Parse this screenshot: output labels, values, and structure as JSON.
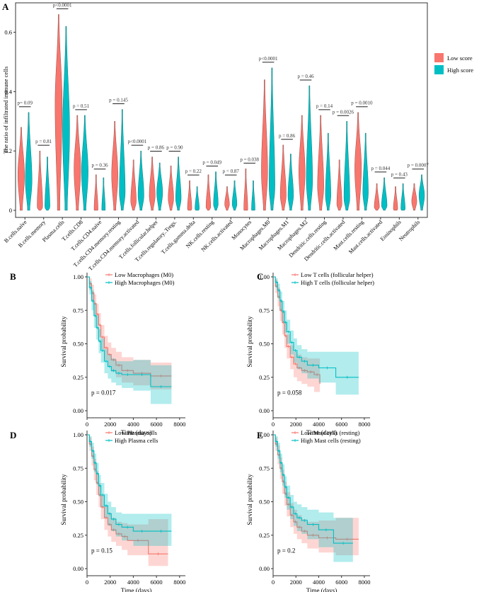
{
  "colors": {
    "low": "#F8766D",
    "high": "#00BFC4",
    "low_fill": "#F8766D",
    "high_fill": "#00BFC4",
    "axis": "#333333",
    "bracket": "#222222"
  },
  "panel_labels": [
    "A",
    "B",
    "C",
    "D",
    "E"
  ],
  "chart_data": [
    {
      "panel": "A",
      "type": "violin",
      "title": "",
      "xlabel": "",
      "ylabel": "The ratio of infiltrated immune cells",
      "ylim": [
        0,
        0.68
      ],
      "yticks": [
        0,
        0.2,
        0.4,
        0.6
      ],
      "ytick_labels": [
        "0",
        "0.2",
        "0.4",
        "0.6"
      ],
      "legend_position": "right",
      "legend": [
        "Low score",
        "High score"
      ],
      "categories": [
        "B.cells.naive",
        "B.cells.memory",
        "Plasma.cells",
        "T.cells.CD8",
        "T.cells.CD4.naive",
        "T.cells.CD4.memory.resting",
        "T.cells.CD4.memory.activated",
        "T.cells.follicular.helper",
        "T.cells.regulatory..Tregs.",
        "T.cells.gamma.delta",
        "NK.cells.resting",
        "NK.cells.activated",
        "Monocytes",
        "Macrophages.M0",
        "Macrophages.M1",
        "Macrophages.M2",
        "Dendritic.cells.resting",
        "Dendritic.cells.activated",
        "Mast.cells.resting",
        "Mast.cells.activated",
        "Eosinophils",
        "Neutrophils"
      ],
      "pvalues": [
        "p= 0.09",
        "p = 0.81",
        "p<0.0001",
        "p = 0.51",
        "p = 0.36",
        "p = 0.145",
        "p<0.0001",
        "p = 0.86",
        "p = 0.90",
        "p = 0.22",
        "p = 0.049",
        "p = 0.87",
        "p = 0.038",
        "p<0.0001",
        "p = 0.86",
        "p = 0.46",
        "p = 0.14",
        "p = 0.0026",
        "p = 0.0010",
        "p = 0.044",
        "p = 0.43",
        "p = 0.0007"
      ],
      "series": [
        {
          "name": "Low score",
          "max": [
            0.28,
            0.2,
            0.66,
            0.32,
            0.12,
            0.3,
            0.17,
            0.18,
            0.15,
            0.1,
            0.12,
            0.08,
            0.14,
            0.44,
            0.22,
            0.32,
            0.32,
            0.17,
            0.33,
            0.09,
            0.08,
            0.09
          ],
          "center": [
            0.12,
            0.01,
            0.36,
            0.14,
            0.002,
            0.12,
            0.03,
            0.05,
            0.04,
            0.005,
            0.01,
            0.02,
            0.002,
            0.13,
            0.05,
            0.13,
            0.08,
            0.02,
            0.14,
            0.01,
            0.005,
            0.03
          ],
          "width": [
            0.85,
            0.7,
            0.9,
            0.85,
            0.5,
            0.8,
            0.7,
            0.75,
            0.7,
            0.55,
            0.6,
            0.6,
            0.5,
            0.8,
            0.75,
            0.8,
            0.8,
            0.65,
            0.85,
            0.65,
            0.55,
            0.65
          ]
        },
        {
          "name": "High score",
          "max": [
            0.33,
            0.18,
            0.62,
            0.32,
            0.11,
            0.34,
            0.2,
            0.16,
            0.18,
            0.08,
            0.13,
            0.1,
            0.1,
            0.48,
            0.19,
            0.42,
            0.26,
            0.3,
            0.26,
            0.11,
            0.09,
            0.12
          ],
          "center": [
            0.1,
            0.01,
            0.27,
            0.13,
            0.002,
            0.06,
            0.05,
            0.06,
            0.04,
            0.005,
            0.02,
            0.02,
            0.002,
            0.08,
            0.05,
            0.1,
            0.05,
            0.04,
            0.06,
            0.015,
            0.005,
            0.05
          ],
          "width": [
            0.85,
            0.65,
            0.9,
            0.85,
            0.45,
            0.75,
            0.75,
            0.75,
            0.7,
            0.55,
            0.6,
            0.6,
            0.45,
            0.75,
            0.7,
            0.8,
            0.7,
            0.75,
            0.7,
            0.7,
            0.55,
            0.7
          ]
        }
      ]
    },
    {
      "panel": "B",
      "type": "survival",
      "xlabel": "Time (days)",
      "ylabel": "Survival probability",
      "xlim": [
        0,
        8500
      ],
      "ylim": [
        0,
        1
      ],
      "xticks": [
        0,
        2000,
        4000,
        6000,
        8000
      ],
      "yticks": [
        "0.00",
        "0.25",
        "0.50",
        "0.75",
        "1.00"
      ],
      "legend_position": "top-center",
      "pvalue": "p = 0.017",
      "series": [
        {
          "name": "Low Macrophages (M0)",
          "x": [
            0,
            200,
            400,
            600,
            800,
            1000,
            1200,
            1500,
            1800,
            2100,
            2500,
            3000,
            4000,
            5500,
            7300
          ],
          "y": [
            1.0,
            0.95,
            0.88,
            0.8,
            0.72,
            0.64,
            0.55,
            0.47,
            0.42,
            0.38,
            0.34,
            0.3,
            0.28,
            0.26,
            0.26
          ],
          "ci_lower": [
            1.0,
            0.9,
            0.82,
            0.72,
            0.63,
            0.55,
            0.46,
            0.38,
            0.33,
            0.29,
            0.25,
            0.21,
            0.19,
            0.16,
            0.16
          ],
          "ci_upper": [
            1.0,
            0.99,
            0.94,
            0.87,
            0.8,
            0.73,
            0.64,
            0.56,
            0.51,
            0.47,
            0.44,
            0.4,
            0.38,
            0.36,
            0.36
          ]
        },
        {
          "name": "High Macrophages (M0)",
          "x": [
            0,
            200,
            400,
            600,
            800,
            1000,
            1200,
            1500,
            1800,
            2100,
            2500,
            3000,
            4000,
            5500,
            7300
          ],
          "y": [
            1.0,
            0.92,
            0.82,
            0.71,
            0.62,
            0.52,
            0.45,
            0.37,
            0.33,
            0.3,
            0.28,
            0.27,
            0.27,
            0.18,
            0.18
          ],
          "ci_lower": [
            1.0,
            0.87,
            0.75,
            0.62,
            0.53,
            0.43,
            0.36,
            0.28,
            0.24,
            0.21,
            0.19,
            0.17,
            0.15,
            0.05,
            0.05
          ],
          "ci_upper": [
            1.0,
            0.97,
            0.9,
            0.8,
            0.71,
            0.61,
            0.54,
            0.46,
            0.42,
            0.39,
            0.37,
            0.37,
            0.38,
            0.34,
            0.34
          ]
        }
      ]
    },
    {
      "panel": "C",
      "type": "survival",
      "xlabel": "Time (days)",
      "ylabel": "Survival probability",
      "xlim": [
        0,
        8500
      ],
      "ylim": [
        0,
        1
      ],
      "xticks": [
        0,
        2000,
        4000,
        6000,
        8000
      ],
      "yticks": [
        "0.00",
        "0.25",
        "0.50",
        "0.75",
        "1.00"
      ],
      "legend_position": "top-center",
      "pvalue": "p = 0.058",
      "series": [
        {
          "name": "Low T cells (follicular helper)",
          "x": [
            0,
            200,
            400,
            600,
            800,
            1000,
            1200,
            1500,
            1800,
            2100,
            2500,
            3000,
            3600,
            4100
          ],
          "y": [
            1.0,
            0.93,
            0.85,
            0.75,
            0.66,
            0.56,
            0.48,
            0.4,
            0.35,
            0.32,
            0.3,
            0.29,
            0.27,
            0.2
          ],
          "ci_lower": [
            1.0,
            0.88,
            0.78,
            0.67,
            0.57,
            0.47,
            0.39,
            0.31,
            0.25,
            0.22,
            0.2,
            0.18,
            0.14,
            0.08
          ],
          "ci_upper": [
            1.0,
            0.98,
            0.92,
            0.83,
            0.75,
            0.65,
            0.57,
            0.49,
            0.44,
            0.42,
            0.4,
            0.39,
            0.39,
            0.34
          ]
        },
        {
          "name": "High T cells (follicular helper)",
          "x": [
            0,
            200,
            400,
            600,
            800,
            1000,
            1200,
            1500,
            1800,
            2100,
            2500,
            3000,
            4000,
            5500,
            7500
          ],
          "y": [
            1.0,
            0.96,
            0.9,
            0.82,
            0.74,
            0.66,
            0.59,
            0.51,
            0.45,
            0.4,
            0.37,
            0.34,
            0.32,
            0.25,
            0.25
          ],
          "ci_lower": [
            1.0,
            0.92,
            0.84,
            0.75,
            0.66,
            0.58,
            0.5,
            0.42,
            0.36,
            0.31,
            0.28,
            0.24,
            0.21,
            0.12,
            0.12
          ],
          "ci_upper": [
            1.0,
            0.99,
            0.95,
            0.89,
            0.82,
            0.75,
            0.68,
            0.6,
            0.54,
            0.49,
            0.46,
            0.44,
            0.44,
            0.44,
            0.44
          ]
        }
      ]
    },
    {
      "panel": "D",
      "type": "survival",
      "xlabel": "Time (days)",
      "ylabel": "Survival probability",
      "xlim": [
        0,
        8500
      ],
      "ylim": [
        0,
        1
      ],
      "xticks": [
        0,
        2000,
        4000,
        6000,
        8000
      ],
      "yticks": [
        "0.00",
        "0.25",
        "0.50",
        "0.75",
        "1.00"
      ],
      "legend_position": "top-center",
      "pvalue": "p = 0.15",
      "series": [
        {
          "name": "Low Plasma cells",
          "x": [
            0,
            200,
            400,
            600,
            800,
            1000,
            1200,
            1500,
            1800,
            2100,
            2500,
            3000,
            3500,
            5300,
            7000
          ],
          "y": [
            1.0,
            0.93,
            0.84,
            0.74,
            0.64,
            0.55,
            0.46,
            0.38,
            0.33,
            0.29,
            0.26,
            0.24,
            0.21,
            0.11,
            0.11
          ],
          "ci_lower": [
            1.0,
            0.88,
            0.77,
            0.66,
            0.55,
            0.46,
            0.37,
            0.29,
            0.24,
            0.2,
            0.17,
            0.14,
            0.1,
            0.02,
            0.02
          ],
          "ci_upper": [
            1.0,
            0.98,
            0.91,
            0.82,
            0.73,
            0.64,
            0.55,
            0.47,
            0.42,
            0.38,
            0.35,
            0.34,
            0.33,
            0.37,
            0.37
          ]
        },
        {
          "name": "High Plasma cells",
          "x": [
            0,
            200,
            400,
            600,
            800,
            1000,
            1200,
            1500,
            1800,
            2100,
            2500,
            3000,
            4000,
            5500,
            7300
          ],
          "y": [
            1.0,
            0.95,
            0.88,
            0.79,
            0.71,
            0.62,
            0.55,
            0.47,
            0.41,
            0.37,
            0.33,
            0.31,
            0.28,
            0.28,
            0.28
          ],
          "ci_lower": [
            1.0,
            0.91,
            0.82,
            0.72,
            0.63,
            0.54,
            0.46,
            0.38,
            0.32,
            0.28,
            0.24,
            0.21,
            0.17,
            0.17,
            0.17
          ],
          "ci_upper": [
            1.0,
            0.99,
            0.94,
            0.86,
            0.79,
            0.7,
            0.64,
            0.56,
            0.5,
            0.46,
            0.42,
            0.41,
            0.41,
            0.41,
            0.41
          ]
        }
      ]
    },
    {
      "panel": "E",
      "type": "survival",
      "xlabel": "Time (days)",
      "ylabel": "Survival probability",
      "xlim": [
        0,
        8500
      ],
      "ylim": [
        0,
        1
      ],
      "xticks": [
        0,
        2000,
        4000,
        6000,
        8000
      ],
      "yticks": [
        "0.00",
        "0.25",
        "0.50",
        "0.75",
        "1.00"
      ],
      "legend_position": "top-center",
      "pvalue": "p = 0.2",
      "series": [
        {
          "name": "Low Mast cells (resting)",
          "x": [
            0,
            200,
            400,
            600,
            800,
            1000,
            1200,
            1500,
            1800,
            2100,
            2500,
            3000,
            4000,
            5500,
            7500
          ],
          "y": [
            1.0,
            0.93,
            0.85,
            0.75,
            0.65,
            0.56,
            0.48,
            0.4,
            0.35,
            0.31,
            0.28,
            0.25,
            0.23,
            0.22,
            0.22
          ],
          "ci_lower": [
            1.0,
            0.88,
            0.78,
            0.67,
            0.56,
            0.47,
            0.39,
            0.31,
            0.26,
            0.22,
            0.19,
            0.15,
            0.12,
            0.1,
            0.1
          ],
          "ci_upper": [
            1.0,
            0.98,
            0.92,
            0.83,
            0.74,
            0.65,
            0.57,
            0.49,
            0.44,
            0.4,
            0.37,
            0.35,
            0.36,
            0.38,
            0.38
          ]
        },
        {
          "name": "High Mast cells (resting)",
          "x": [
            0,
            200,
            400,
            600,
            800,
            1000,
            1200,
            1500,
            1800,
            2100,
            2500,
            3000,
            4000,
            5300,
            7000
          ],
          "y": [
            1.0,
            0.95,
            0.88,
            0.79,
            0.7,
            0.61,
            0.53,
            0.46,
            0.41,
            0.38,
            0.36,
            0.33,
            0.29,
            0.19,
            0.19
          ],
          "ci_lower": [
            1.0,
            0.91,
            0.82,
            0.72,
            0.62,
            0.53,
            0.44,
            0.37,
            0.32,
            0.28,
            0.26,
            0.22,
            0.16,
            0.05,
            0.05
          ],
          "ci_upper": [
            1.0,
            0.99,
            0.94,
            0.86,
            0.78,
            0.69,
            0.62,
            0.55,
            0.5,
            0.48,
            0.46,
            0.44,
            0.42,
            0.38,
            0.38
          ]
        }
      ]
    }
  ]
}
